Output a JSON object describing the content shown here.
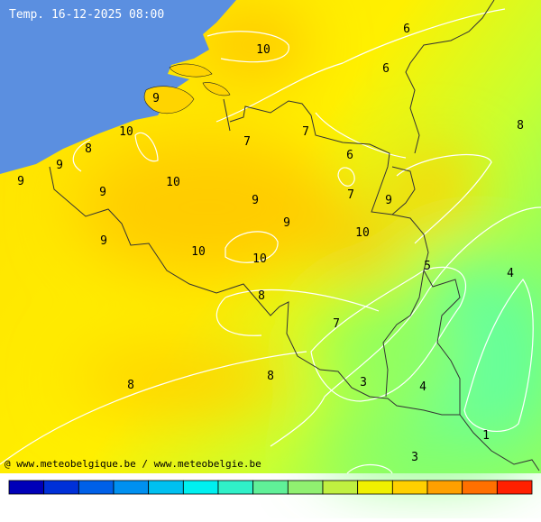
{
  "header": {
    "title": "Temp. 16-12-2025 08:00"
  },
  "labels": [
    10,
    6,
    6,
    8,
    9,
    10,
    8,
    9,
    9,
    9,
    10,
    7,
    7,
    6,
    7,
    9,
    9,
    9,
    10,
    9,
    10,
    10,
    5,
    4,
    8,
    7,
    8,
    8,
    3,
    4,
    1,
    3
  ],
  "footer": {
    "credit": "@ www.meteobelgique.be / www.meteobelgie.be"
  }
}
